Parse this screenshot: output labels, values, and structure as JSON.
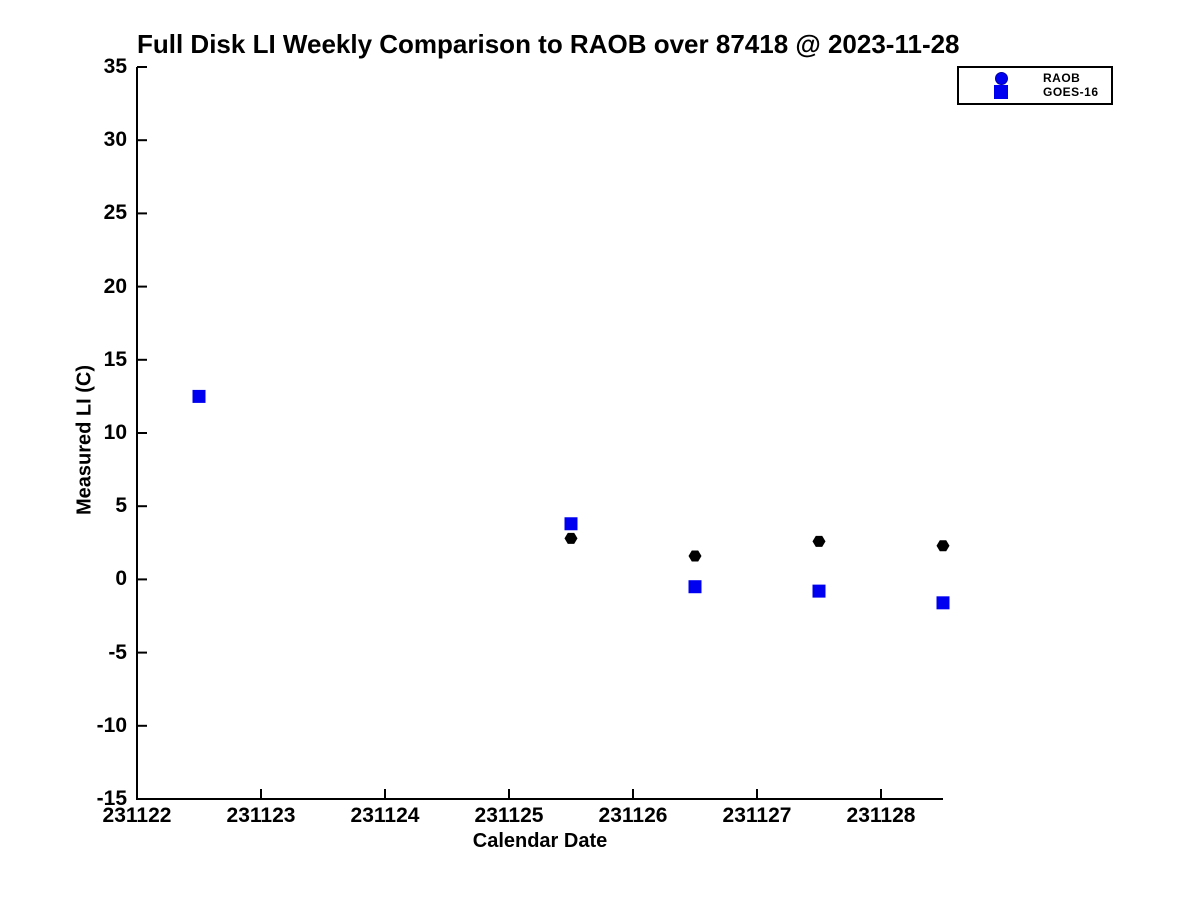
{
  "chart_data": {
    "type": "scatter",
    "title": "Full Disk LI Weekly Comparison to RAOB over 87418 @ 2023-11-28",
    "xlabel": "Calendar Date",
    "ylabel": "Measured LI (C)",
    "xlim": [
      231122,
      231128.5
    ],
    "ylim": [
      -15,
      35
    ],
    "xticks": [
      231122,
      231123,
      231124,
      231125,
      231126,
      231127,
      231128
    ],
    "yticks": [
      -15,
      -10,
      -5,
      0,
      5,
      10,
      15,
      20,
      25,
      30,
      35
    ],
    "grid": false,
    "box": false,
    "tick_direction": "in",
    "series": [
      {
        "name": "RAOB",
        "marker": "hexagon",
        "color": "#000000",
        "points": [
          {
            "x": 231122.5,
            "y": 12.5
          },
          {
            "x": 231125.5,
            "y": 2.8
          },
          {
            "x": 231126.5,
            "y": 1.6
          },
          {
            "x": 231127.5,
            "y": 2.6
          },
          {
            "x": 231128.5,
            "y": 2.3
          }
        ]
      },
      {
        "name": "GOES-16",
        "marker": "square",
        "color": "#0000f0",
        "points": [
          {
            "x": 231122.5,
            "y": 12.5
          },
          {
            "x": 231125.5,
            "y": 3.8
          },
          {
            "x": 231126.5,
            "y": -0.5
          },
          {
            "x": 231127.5,
            "y": -0.8
          },
          {
            "x": 231128.5,
            "y": -1.6
          }
        ]
      }
    ],
    "legend": {
      "position": "outside-top-right",
      "entries": [
        {
          "label": "RAOB",
          "marker": "circle",
          "fill": "#0000f0",
          "edge": "#0000a8"
        },
        {
          "label": "GOES-16",
          "marker": "square",
          "fill": "#0000f0",
          "edge": "#0000f0"
        }
      ]
    }
  },
  "colors": {
    "axis": "#000000",
    "background": "#ffffff",
    "marker_blue": "#0000f0",
    "marker_black": "#000000"
  }
}
